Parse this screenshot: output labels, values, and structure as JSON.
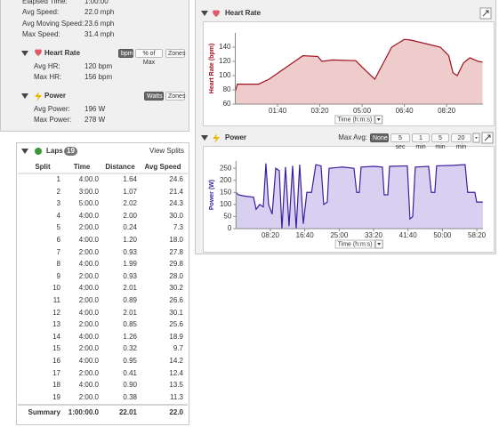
{
  "summary": {
    "rows": [
      {
        "label": "Elapsed Time:",
        "value": "1:00:00"
      },
      {
        "label": "Avg Speed:",
        "value": "22.0 mph"
      },
      {
        "label": "Avg Moving Speed:",
        "value": "23.6 mph"
      },
      {
        "label": "Max Speed:",
        "value": "31.4 mph"
      }
    ]
  },
  "heart_rate": {
    "title": "Heart Rate",
    "buttons": [
      "bpm",
      "% of Max",
      "Zones"
    ],
    "selected": 0,
    "rows": [
      {
        "label": "Avg HR:",
        "value": "120 bpm"
      },
      {
        "label": "Max HR:",
        "value": "156 bpm"
      }
    ]
  },
  "power": {
    "title": "Power",
    "buttons": [
      "Watts",
      "Zones"
    ],
    "selected": 0,
    "rows": [
      {
        "label": "Avg Power:",
        "value": "196 W"
      },
      {
        "label": "Max Power:",
        "value": "278 W"
      }
    ]
  },
  "laps": {
    "title": "Laps",
    "count": "19",
    "link": "View Splits",
    "columns": [
      "Split",
      "Time",
      "Distance",
      "Avg Speed"
    ],
    "rows": [
      [
        "1",
        "4:00.0",
        "1.64",
        "24.6"
      ],
      [
        "2",
        "3:00.0",
        "1.07",
        "21.4"
      ],
      [
        "3",
        "5:00.0",
        "2.02",
        "24.3"
      ],
      [
        "4",
        "4:00.0",
        "2.00",
        "30.0"
      ],
      [
        "5",
        "2:00.0",
        "0.24",
        "7.3"
      ],
      [
        "6",
        "4:00.0",
        "1.20",
        "18.0"
      ],
      [
        "7",
        "2:00.0",
        "0.93",
        "27.8"
      ],
      [
        "8",
        "4:00.0",
        "1.99",
        "29.8"
      ],
      [
        "9",
        "2:00.0",
        "0.93",
        "28.0"
      ],
      [
        "10",
        "4:00.0",
        "2.01",
        "30.2"
      ],
      [
        "11",
        "2:00.0",
        "0.89",
        "26.6"
      ],
      [
        "12",
        "4:00.0",
        "2.01",
        "30.1"
      ],
      [
        "13",
        "2:00.0",
        "0.85",
        "25.6"
      ],
      [
        "14",
        "4:00.0",
        "1.26",
        "18.9"
      ],
      [
        "15",
        "2:00.0",
        "0.32",
        "9.7"
      ],
      [
        "16",
        "4:00.0",
        "0.95",
        "14.2"
      ],
      [
        "17",
        "2:00.0",
        "0.41",
        "12.4"
      ],
      [
        "18",
        "4:00.0",
        "0.90",
        "13.5"
      ],
      [
        "19",
        "2:00.0",
        "0.38",
        "11.3"
      ]
    ],
    "summary": [
      "Summary",
      "1:00:00.0",
      "22.01",
      "22.0"
    ]
  },
  "chart_data": [
    {
      "type": "area",
      "title": "Heart Rate",
      "ylabel": "Heart Rate (bpm)",
      "xlabel": "Time (h:m:s)",
      "color": "#a0121e",
      "fill": "#efcccc",
      "grid": false,
      "x": [
        0,
        5,
        55,
        80,
        160,
        195,
        205,
        230,
        285,
        300,
        330,
        370,
        400,
        415,
        450,
        485,
        505,
        515,
        525,
        540,
        555,
        575,
        585
      ],
      "values": [
        78,
        88,
        88,
        95,
        128,
        127,
        120,
        122,
        121,
        112,
        95,
        140,
        151,
        150,
        145,
        140,
        128,
        104,
        100,
        118,
        125,
        120,
        119
      ],
      "xlim": [
        0,
        586
      ],
      "ylim": [
        60,
        160
      ],
      "xticks": [
        {
          "value": 100,
          "label": "01:40"
        },
        {
          "value": 200,
          "label": "03:20"
        },
        {
          "value": 300,
          "label": "05:00"
        },
        {
          "value": 400,
          "label": "06:40"
        },
        {
          "value": 500,
          "label": "08:20"
        }
      ],
      "yticks": [
        60,
        80,
        100,
        120,
        140
      ]
    },
    {
      "type": "area",
      "title": "Power",
      "ylabel": "Power (W)",
      "xlabel": "Time (h:m:s)",
      "color": "#3a1f9e",
      "fill": "#d9cff0",
      "grid": false,
      "controls": {
        "label": "Max Avg:",
        "options": [
          "None",
          "5 sec",
          "1 min",
          "5 min",
          "20 min"
        ],
        "selected": 0
      },
      "x": [
        0,
        35,
        125,
        255,
        293,
        345,
        397,
        435,
        474,
        526,
        578,
        629,
        668,
        720,
        771,
        823,
        875,
        926,
        978,
        1030,
        1098,
        1160,
        1236,
        1275,
        1327,
        1353,
        1547,
        1715,
        1754,
        1792,
        1818,
        1999,
        2128,
        2154,
        2206,
        2232,
        2490,
        2529,
        2568,
        2606,
        2800,
        2839,
        2890,
        2916,
        3162,
        3330,
        3368,
        3472,
        3498,
        3588
      ],
      "values": [
        150,
        140,
        135,
        130,
        80,
        100,
        90,
        270,
        100,
        60,
        250,
        240,
        0,
        255,
        10,
        260,
        0,
        265,
        20,
        150,
        150,
        265,
        260,
        100,
        110,
        250,
        255,
        250,
        150,
        150,
        255,
        258,
        255,
        140,
        140,
        258,
        260,
        40,
        50,
        255,
        258,
        150,
        150,
        260,
        262,
        265,
        150,
        150,
        110,
        110
      ],
      "xlim": [
        0,
        3590
      ],
      "ylim": [
        0,
        280
      ],
      "xticks": [
        {
          "value": 500,
          "label": "08:20"
        },
        {
          "value": 1000,
          "label": "16:40"
        },
        {
          "value": 1500,
          "label": "25:00"
        },
        {
          "value": 2000,
          "label": "33:20"
        },
        {
          "value": 2500,
          "label": "41:40"
        },
        {
          "value": 3000,
          "label": "50:00"
        },
        {
          "value": 3500,
          "label": "58:20"
        }
      ],
      "yticks": [
        0,
        50,
        100,
        150,
        200,
        250
      ]
    }
  ]
}
